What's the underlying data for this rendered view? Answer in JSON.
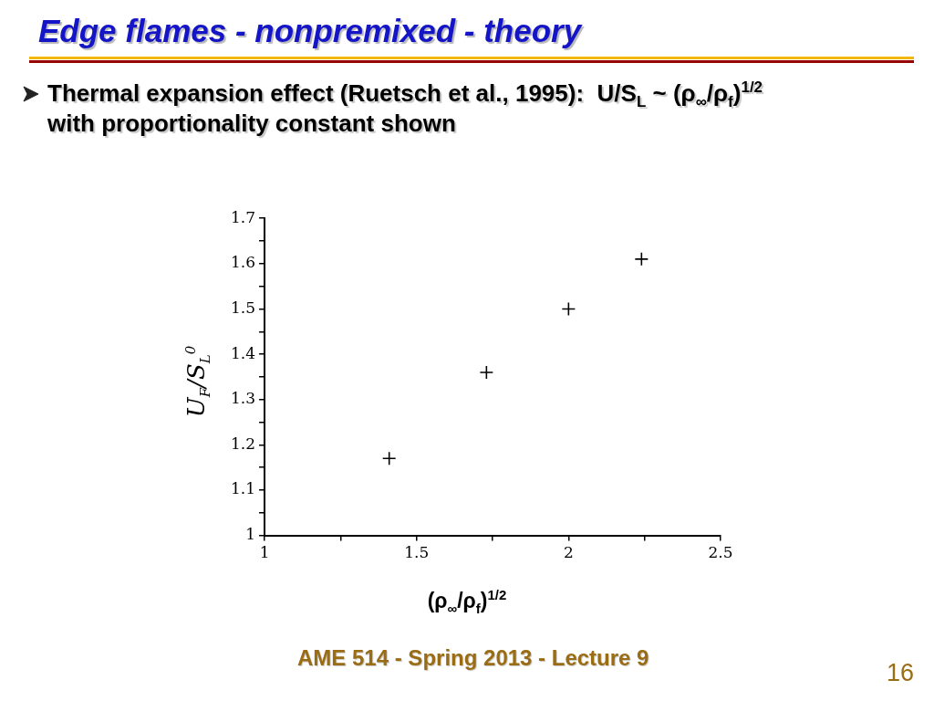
{
  "chart_data": {
    "type": "scatter",
    "title": "Edge flames - nonpremixed - theory",
    "subtitle": "Thermal expansion effect (Ruetsch et al., 1995):  U/S$_{L}$ ~ (ρ$_{∞}$/ρ$_{f}$)$^{1/2}$\nwith proportionality constant shown",
    "xlabel": "(ρ$_{∞}$/ρ$_{f}$)$^{1/2}$",
    "ylabel": "U$_{F}$/S$_{L}$$^{0}$",
    "annotations": [
      "AME 514 - Spring 2013 - Lecture 9",
      "16"
    ],
    "x": [
      1.41,
      1.73,
      2.0,
      2.24
    ],
    "values": [
      1.17,
      1.36,
      1.5,
      1.61
    ],
    "color": "#000000",
    "marker": "cross",
    "xlim": [
      1,
      2.5
    ],
    "xticks": [
      1,
      {
        "value": 1.25,
        "label": null
      },
      1.5,
      {
        "value": 1.75,
        "label": null
      },
      2,
      {
        "value": 2.25,
        "label": null
      },
      2.5
    ],
    "ylim": [
      1,
      1.7
    ],
    "yticks": [
      1,
      {
        "value": 1.05,
        "label": null
      },
      1.1,
      {
        "value": 1.15,
        "label": null
      },
      1.2,
      {
        "value": 1.25,
        "label": null
      },
      1.3,
      {
        "value": 1.35,
        "label": null
      },
      1.4,
      {
        "value": 1.45,
        "label": null
      },
      1.5,
      {
        "value": 1.55,
        "label": null
      },
      1.6,
      {
        "value": 1.65,
        "label": null
      },
      1.7
    ]
  }
}
